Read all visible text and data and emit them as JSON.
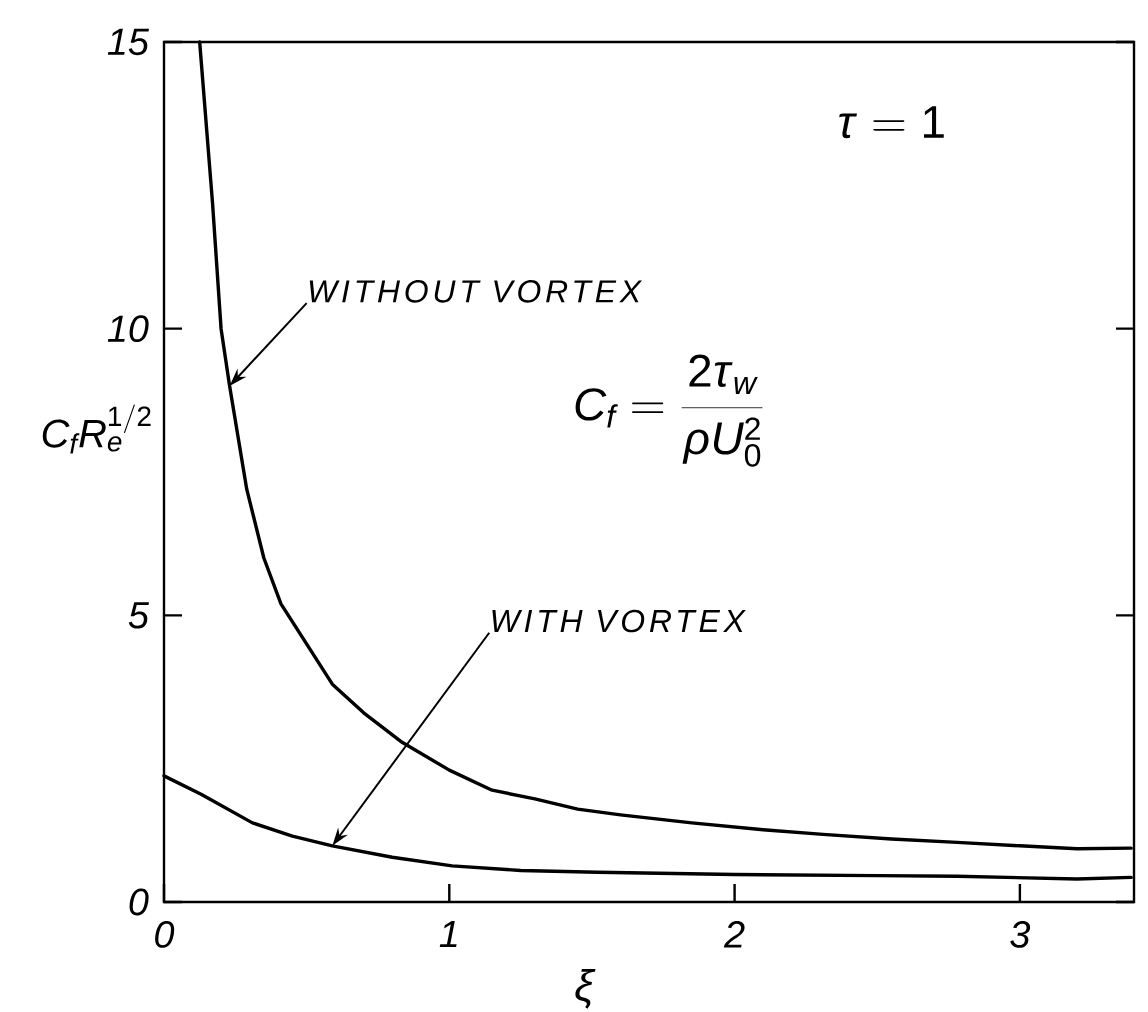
{
  "chart_data": {
    "type": "line",
    "xlabel": "ξ",
    "ylabel": "C_f R_e^{1/2}",
    "annotations": [
      "\\tau = 1",
      "C_f = \\frac{2\\tau_w}{\\rho U_0^2}"
    ],
    "xlim": [
      0,
      3.4
    ],
    "ylim": [
      0,
      15
    ],
    "xticks": [
      0,
      1,
      2,
      3
    ],
    "yticks": [
      0,
      5,
      10,
      15
    ],
    "marker": "none",
    "line_style": "solid",
    "series": [
      {
        "name": "WITHOUT VORTEX",
        "color": "#000000",
        "x": [
          0.125,
          0.17,
          0.2,
          0.23,
          0.29,
          0.35,
          0.41,
          0.5,
          0.59,
          0.7,
          0.83,
          1.0,
          1.15,
          1.3,
          1.45,
          1.6,
          1.85,
          2.1,
          2.31,
          2.55,
          2.78,
          3.0,
          3.2,
          3.39
        ],
        "values": [
          15,
          12.2,
          10.0,
          9.0,
          7.2,
          6.0,
          5.2,
          4.5,
          3.8,
          3.3,
          2.8,
          2.3,
          1.95,
          1.8,
          1.62,
          1.52,
          1.38,
          1.26,
          1.18,
          1.1,
          1.04,
          0.98,
          0.93,
          0.94
        ]
      },
      {
        "name": "WITH VORTEX",
        "color": "#000000",
        "x": [
          0,
          0.13,
          0.31,
          0.45,
          0.59,
          0.8,
          1.01,
          1.25,
          1.52,
          2.0,
          2.5,
          2.78,
          3.2,
          3.39
        ],
        "values": [
          2.2,
          1.88,
          1.38,
          1.15,
          0.98,
          0.78,
          0.63,
          0.55,
          0.52,
          0.48,
          0.46,
          0.45,
          0.4,
          0.43
        ]
      }
    ]
  }
}
